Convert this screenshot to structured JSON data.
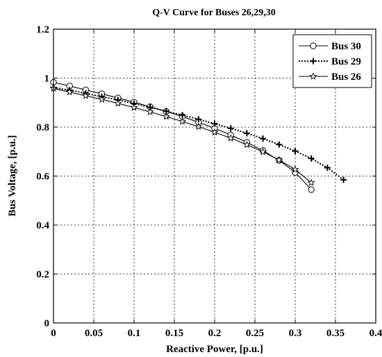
{
  "chart_data": {
    "type": "line",
    "title": "Q-V Curve for Buses 26,29,30",
    "xlabel": "Reactive Power, [p.u.]",
    "ylabel": "Bus Voltage, [p.u.]",
    "xlim": [
      0,
      0.4
    ],
    "ylim": [
      0,
      1.2
    ],
    "xticks": [
      0,
      0.05,
      0.1,
      0.15,
      0.2,
      0.25,
      0.3,
      0.35,
      0.4
    ],
    "xtick_labels": [
      "0",
      "0.05",
      "0.1",
      "0.15",
      "0.2",
      "0.25",
      "0.3",
      "0.35",
      "0.4"
    ],
    "yticks": [
      0,
      0.2,
      0.4,
      0.6,
      0.8,
      1,
      1.2
    ],
    "ytick_labels": [
      "0",
      "0.2",
      "0.4",
      "0.6",
      "0.8",
      "1",
      "1.2"
    ],
    "grid": true,
    "legend_position": "top-right",
    "series": [
      {
        "name": "Bus 30",
        "line_style": "solid",
        "marker": "circle",
        "color": "#000000",
        "x": [
          0,
          0.02,
          0.04,
          0.06,
          0.08,
          0.1,
          0.12,
          0.14,
          0.16,
          0.18,
          0.2,
          0.22,
          0.24,
          0.26,
          0.28,
          0.3,
          0.32
        ],
        "y": [
          0.983,
          0.968,
          0.952,
          0.936,
          0.919,
          0.902,
          0.883,
          0.864,
          0.843,
          0.82,
          0.795,
          0.768,
          0.738,
          0.704,
          0.664,
          0.615,
          0.545
        ]
      },
      {
        "name": "Bus 29",
        "line_style": "dotted",
        "marker": "plus",
        "color": "#000000",
        "x": [
          0,
          0.02,
          0.04,
          0.06,
          0.08,
          0.1,
          0.12,
          0.14,
          0.16,
          0.18,
          0.2,
          0.22,
          0.24,
          0.26,
          0.28,
          0.3,
          0.32,
          0.34,
          0.36
        ],
        "y": [
          0.962,
          0.951,
          0.938,
          0.924,
          0.911,
          0.896,
          0.881,
          0.865,
          0.849,
          0.832,
          0.814,
          0.795,
          0.775,
          0.753,
          0.729,
          0.702,
          0.672,
          0.634,
          0.585
        ]
      },
      {
        "name": "Bus 26",
        "line_style": "solid",
        "marker": "star",
        "color": "#000000",
        "x": [
          0,
          0.02,
          0.04,
          0.06,
          0.08,
          0.1,
          0.12,
          0.14,
          0.16,
          0.18,
          0.2,
          0.22,
          0.24,
          0.26,
          0.28,
          0.3,
          0.32
        ],
        "y": [
          0.958,
          0.943,
          0.928,
          0.913,
          0.897,
          0.88,
          0.862,
          0.843,
          0.823,
          0.802,
          0.779,
          0.755,
          0.728,
          0.699,
          0.666,
          0.627,
          0.573
        ]
      }
    ]
  }
}
